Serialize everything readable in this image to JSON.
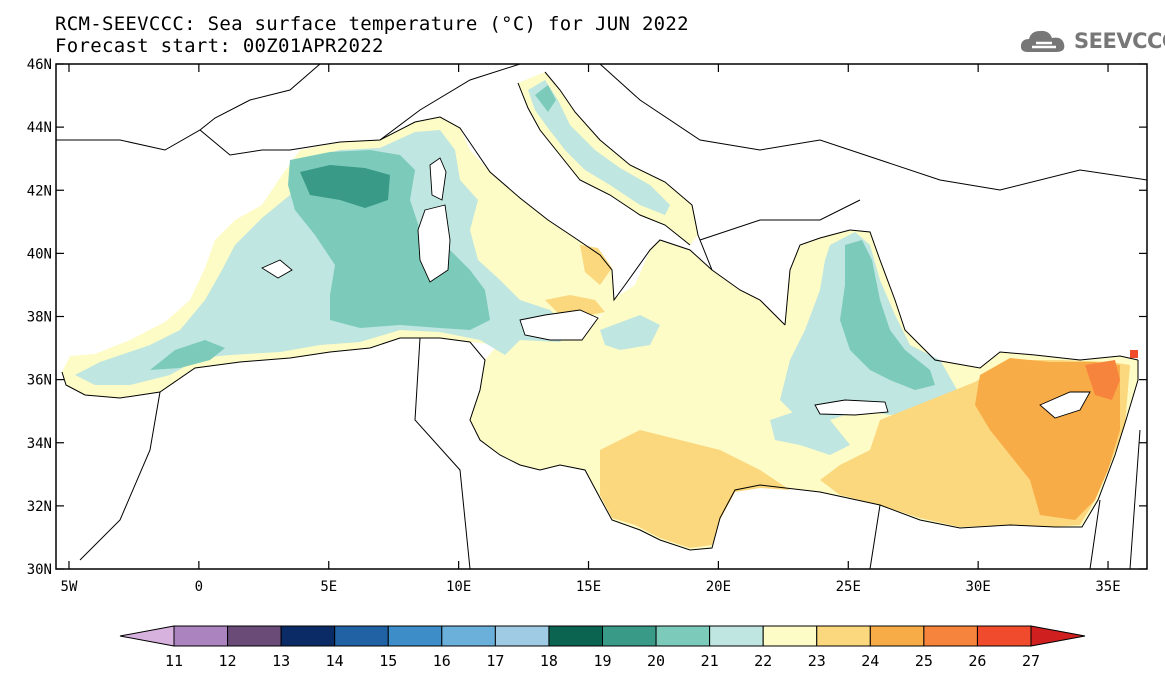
{
  "header": {
    "title_line1": "RCM-SEEVCCC: Sea surface temperature (°C) for JUN 2022",
    "title_line2": "Forecast start: 00Z01APR2022",
    "logo_text": "SEEVCCC"
  },
  "map": {
    "lon_range": [
      -5.5,
      36.5
    ],
    "lat_range": [
      30,
      46
    ],
    "lat_ticks": [
      "30N",
      "32N",
      "34N",
      "36N",
      "38N",
      "40N",
      "42N",
      "44N",
      "46N"
    ],
    "lon_ticks": [
      "5W",
      "0",
      "5E",
      "10E",
      "15E",
      "20E",
      "25E",
      "30E",
      "35E"
    ],
    "land_color": "#ffffff",
    "border_color": "#000000"
  },
  "colorbar": {
    "labels": [
      "11",
      "12",
      "13",
      "14",
      "15",
      "16",
      "17",
      "18",
      "19",
      "20",
      "21",
      "22",
      "23",
      "24",
      "25",
      "26",
      "27"
    ],
    "colors": [
      "#d8b2de",
      "#aa83bf",
      "#6a4b77",
      "#0b2b66",
      "#2162a5",
      "#3d8ec8",
      "#6bb0db",
      "#a0cbe4",
      "#0b6450",
      "#3a9a88",
      "#7ccbba",
      "#bfe6e0",
      "#fdfbc6",
      "#fbd77d",
      "#f8ac47",
      "#f7843c",
      "#f04b2c",
      "#cf1f1f"
    ]
  }
}
